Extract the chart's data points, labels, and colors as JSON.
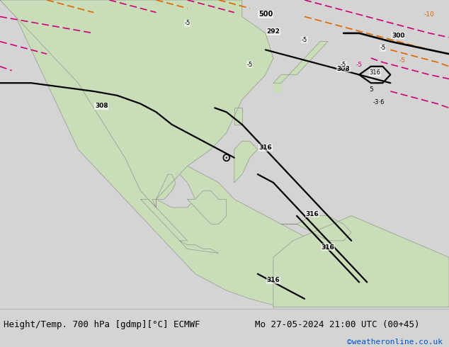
{
  "title_left": "Height/Temp. 700 hPa [gdmp][°C] ECMWF",
  "title_right": "Mo 27-05-2024 21:00 UTC (00+45)",
  "copyright": "©weatheronline.co.uk",
  "bg_color": "#d4d4d4",
  "bottom_bar_color": "#e0e0e0",
  "text_color_black": "#000000",
  "text_color_blue": "#0055cc",
  "fig_width": 6.34,
  "fig_height": 4.9,
  "dpi": 100,
  "map_extent": [
    60,
    160,
    -20,
    50
  ],
  "water_color": "#b8cfe0",
  "land_color": "#c8ddb8",
  "coast_color": "#888888",
  "black_contour_color": "#000000",
  "magenta_contour_color": "#cc0077",
  "orange_contour_color": "#dd6600",
  "contour_lw": 1.6,
  "dashed_lw": 1.2
}
